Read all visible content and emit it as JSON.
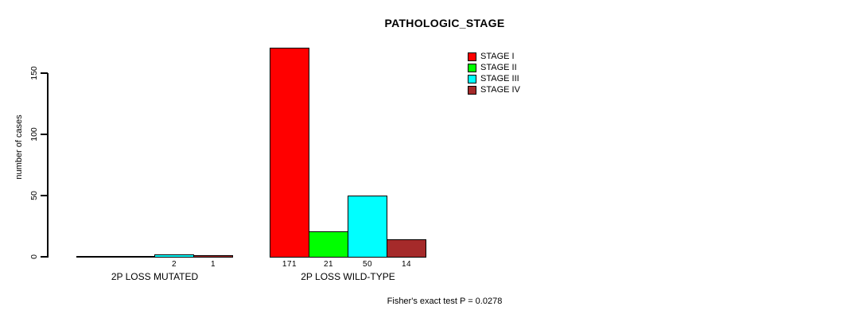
{
  "header": {
    "title": "PATHOLOGIC_STAGE"
  },
  "footer": {
    "text": "Fisher's exact test P = 0.0278"
  },
  "colors": {
    "background": "#ffffff",
    "axis": "#000000",
    "text": "#000000",
    "stage_i": "#ff0000",
    "stage_ii": "#00ff00",
    "stage_iii": "#00ffff",
    "stage_iv": "#a52a2a"
  },
  "chart_data": {
    "type": "bar",
    "title": "PATHOLOGIC_STAGE",
    "xlabel": "",
    "ylabel": "number of cases",
    "y_ticks": [
      0,
      50,
      100,
      150
    ],
    "ylim": [
      0,
      175
    ],
    "grid": false,
    "legend_position": "top-right",
    "categories": [
      "2P LOSS MUTATED",
      "2P LOSS WILD-TYPE"
    ],
    "series": [
      {
        "name": "STAGE I",
        "color": "#ff0000",
        "values": [
          0,
          171
        ]
      },
      {
        "name": "STAGE II",
        "color": "#00ff00",
        "values": [
          0,
          21
        ]
      },
      {
        "name": "STAGE III",
        "color": "#00ffff",
        "values": [
          2,
          50
        ]
      },
      {
        "name": "STAGE IV",
        "color": "#a52a2a",
        "values": [
          1,
          14
        ]
      }
    ],
    "bar_value_labels": [
      [
        "",
        "",
        "2",
        "1"
      ],
      [
        "171",
        "21",
        "50",
        "14"
      ]
    ],
    "annotation": "Fisher's exact test P = 0.0278"
  }
}
